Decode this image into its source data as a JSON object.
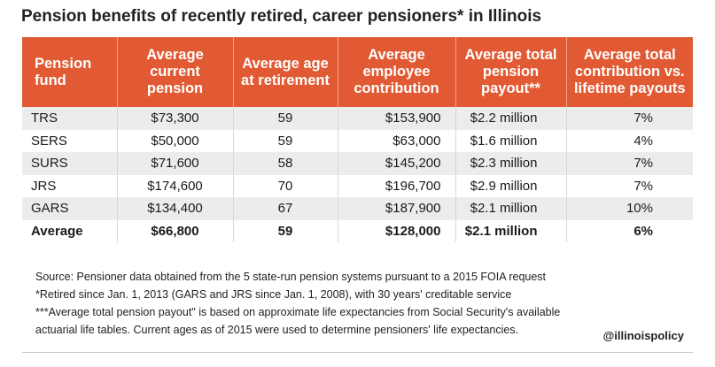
{
  "title": "Pension benefits of recently retired, career pensioners* in Illinois",
  "chart_data": {
    "type": "table",
    "columns": [
      "Pension fund",
      "Average current pension",
      "Average age at retirement",
      "Average employee contribution",
      "Average total pension payout**",
      "Average total contribution vs. lifetime payouts"
    ],
    "rows": [
      [
        "TRS",
        "$73,300",
        "59",
        "$153,900",
        "$2.2 million",
        "7%"
      ],
      [
        "SERS",
        "$50,000",
        "59",
        "$63,000",
        "$1.6 million",
        "4%"
      ],
      [
        "SURS",
        "$71,600",
        "58",
        "$145,200",
        "$2.3 million",
        "7%"
      ],
      [
        "JRS",
        "$174,600",
        "70",
        "$196,700",
        "$2.9 million",
        "7%"
      ],
      [
        "GARS",
        "$134,400",
        "67",
        "$187,900",
        "$2.1 million",
        "10%"
      ],
      [
        "Average",
        "$66,800",
        "59",
        "$128,000",
        "$2.1 million",
        "6%"
      ]
    ]
  },
  "notes": [
    "Source: Pensioner data obtained from the 5 state-run pension systems pursuant to a 2015 FOIA request",
    "*Retired since Jan. 1, 2013 (GARS and JRS since Jan. 1, 2008), with 30 years' creditable service",
    "***Average total pension payout\" is based on approximate life expectancies from Social Security's available",
    "actuarial life tables. Current ages as of 2015 were used to determine pensioners' life expectancies."
  ],
  "handle": "@illinoispolicy",
  "colors": {
    "header_bg": "#e15a33",
    "header_text": "#ffffff",
    "row_alt_bg": "#ececec"
  }
}
